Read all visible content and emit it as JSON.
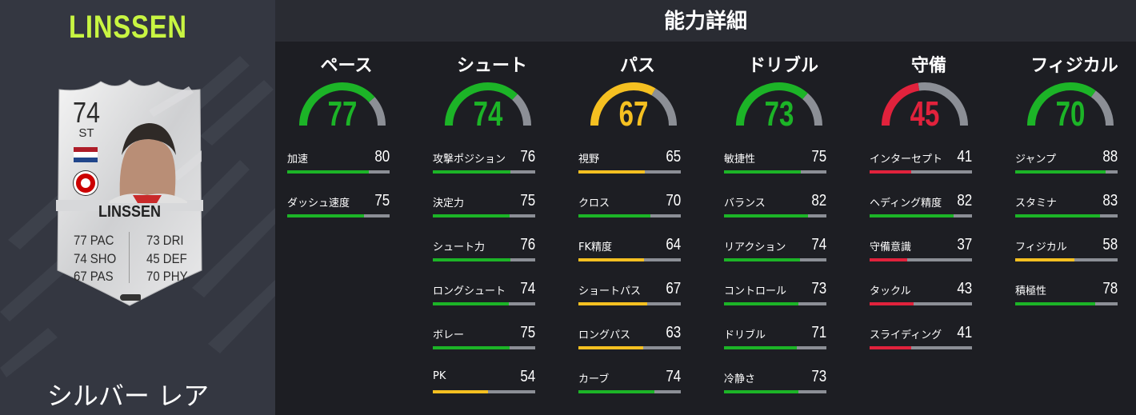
{
  "colors": {
    "green": "#1cb427",
    "yellow": "#f5c021",
    "red": "#e1223c",
    "track": "#8c8f96",
    "lime": "#c8f542"
  },
  "player": {
    "name_top": "LINSSEN",
    "rarity": "シルバー レア",
    "card": {
      "rating": "74",
      "position": "ST",
      "name": "LINSSEN",
      "stats": [
        "77 PAC",
        "74 SHO",
        "67 PAS",
        "73 DRI",
        "45 DEF",
        "70 PHY"
      ]
    }
  },
  "header": {
    "title": "能力詳細"
  },
  "categories": [
    {
      "label": "ペース",
      "value": 77,
      "attrs": [
        {
          "label": "加速",
          "value": 80
        },
        {
          "label": "ダッシュ速度",
          "value": 75
        }
      ]
    },
    {
      "label": "シュート",
      "value": 74,
      "attrs": [
        {
          "label": "攻撃ポジション",
          "value": 76
        },
        {
          "label": "決定力",
          "value": 75
        },
        {
          "label": "シュート力",
          "value": 76
        },
        {
          "label": "ロングシュート",
          "value": 74
        },
        {
          "label": "ボレー",
          "value": 75
        },
        {
          "label": "PK",
          "value": 54
        }
      ]
    },
    {
      "label": "パス",
      "value": 67,
      "attrs": [
        {
          "label": "視野",
          "value": 65
        },
        {
          "label": "クロス",
          "value": 70
        },
        {
          "label": "FK精度",
          "value": 64
        },
        {
          "label": "ショートパス",
          "value": 67
        },
        {
          "label": "ロングパス",
          "value": 63
        },
        {
          "label": "カーブ",
          "value": 74
        }
      ]
    },
    {
      "label": "ドリブル",
      "value": 73,
      "attrs": [
        {
          "label": "敏捷性",
          "value": 75
        },
        {
          "label": "バランス",
          "value": 82
        },
        {
          "label": "リアクション",
          "value": 74
        },
        {
          "label": "コントロール",
          "value": 73
        },
        {
          "label": "ドリブル",
          "value": 71
        },
        {
          "label": "冷静さ",
          "value": 73
        }
      ]
    },
    {
      "label": "守備",
      "value": 45,
      "attrs": [
        {
          "label": "インターセプト",
          "value": 41
        },
        {
          "label": "ヘディング精度",
          "value": 82
        },
        {
          "label": "守備意識",
          "value": 37
        },
        {
          "label": "タックル",
          "value": 43
        },
        {
          "label": "スライディング",
          "value": 41
        }
      ]
    },
    {
      "label": "フィジカル",
      "value": 70,
      "attrs": [
        {
          "label": "ジャンプ",
          "value": 88
        },
        {
          "label": "スタミナ",
          "value": 83
        },
        {
          "label": "フィジカル",
          "value": 58
        },
        {
          "label": "積極性",
          "value": 78
        }
      ]
    }
  ]
}
